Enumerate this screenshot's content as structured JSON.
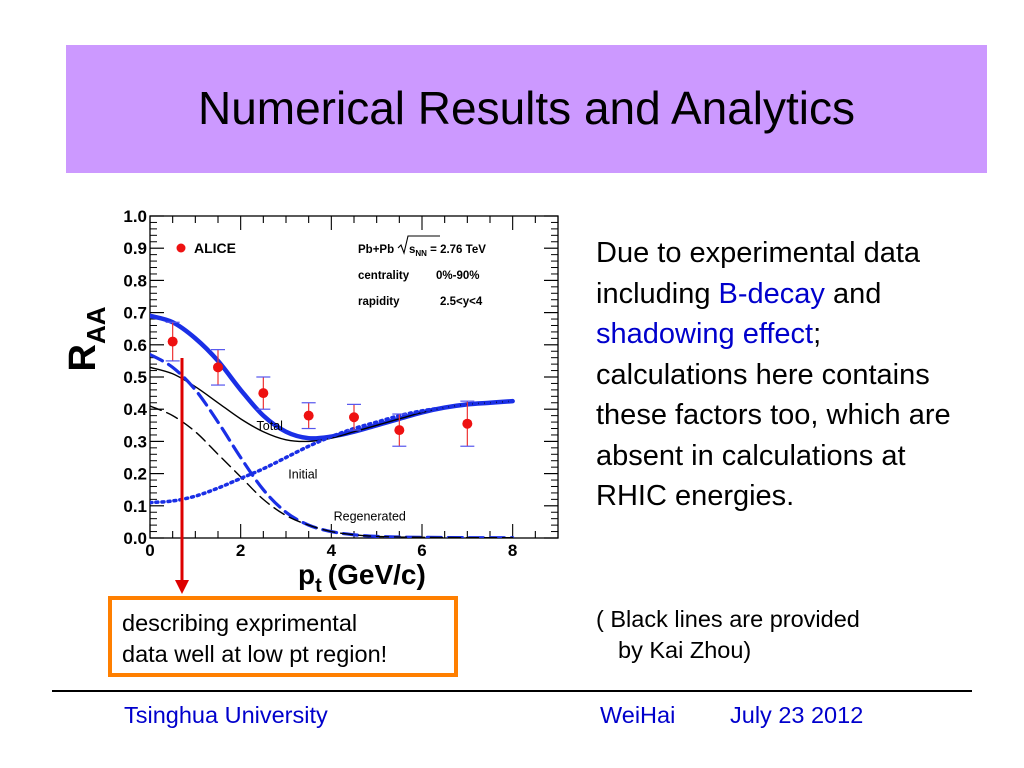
{
  "slide": {
    "title": "Numerical Results and Analytics",
    "colors": {
      "title_bg": "#cc99ff",
      "highlight": "#0000cc",
      "callout_border": "#ff7f00",
      "arrow": "#dd0000"
    }
  },
  "text": {
    "p1": "Due to experimental data including ",
    "h1": "B-decay",
    "p2": " and ",
    "h2": "shadowing effect",
    "p3": "; calculations here contains these factors too, which are absent in calculations at RHIC energies.",
    "note_line1": "( Black lines are provided",
    "note_line2": "by Kai Zhou)"
  },
  "callout": {
    "line1": "describing exprimental",
    "line2": "data well at low pt region!"
  },
  "footer": {
    "university": "Tsinghua University",
    "place": "WeiHai",
    "date": "July 23  2012"
  },
  "chart_data": {
    "type": "line",
    "ylabel_main": "R",
    "ylabel_sub": "AA",
    "xlabel_main": "p",
    "xlabel_sub": "t",
    "xlabel_unit": "(GeV/c)",
    "xlim": [
      0,
      9
    ],
    "ylim": [
      0,
      1
    ],
    "x_ticks": [
      0,
      2,
      4,
      6,
      8
    ],
    "y_ticks": [
      0.0,
      0.1,
      0.2,
      0.3,
      0.4,
      0.5,
      0.6,
      0.7,
      0.8,
      0.9,
      1.0
    ],
    "y_tick_labels": [
      "0.0",
      "0.1",
      "0.2",
      "0.3",
      "0.4",
      "0.5",
      "0.6",
      "0.7",
      "0.8",
      "0.9",
      "1.0"
    ],
    "legend": {
      "label": "ALICE",
      "position": "top-left"
    },
    "info": {
      "line1_pre": "Pb+Pb ",
      "line1_s": "s",
      "line1_sub": "NN",
      "line1_post": " = 2.76 TeV",
      "line2_label": "centrality",
      "line2_value": "0%-90%",
      "line3_label": "rapidity",
      "line3_value": "2.5<y<4"
    },
    "annotations": [
      {
        "text": "Total",
        "x": 2.35,
        "y": 0.335
      },
      {
        "text": "Initial",
        "x": 3.05,
        "y": 0.185
      },
      {
        "text": "Regenerated",
        "x": 4.05,
        "y": 0.055
      }
    ],
    "data_points": {
      "name": "ALICE",
      "x": [
        0.5,
        1.5,
        2.5,
        3.5,
        4.5,
        5.5,
        7.0
      ],
      "y": [
        0.61,
        0.53,
        0.45,
        0.38,
        0.375,
        0.335,
        0.355
      ],
      "err": [
        0.06,
        0.055,
        0.05,
        0.04,
        0.04,
        0.05,
        0.07
      ]
    },
    "series": [
      {
        "style": "blue-solid-thick",
        "x": [
          0,
          0.5,
          1,
          1.5,
          2,
          2.5,
          3,
          3.5,
          4,
          4.5,
          5,
          5.5,
          6,
          6.5,
          7,
          7.5,
          8
        ],
        "values": [
          0.69,
          0.67,
          0.62,
          0.55,
          0.46,
          0.38,
          0.33,
          0.31,
          0.315,
          0.33,
          0.35,
          0.37,
          0.39,
          0.405,
          0.415,
          0.42,
          0.425
        ]
      },
      {
        "style": "black-solid",
        "x": [
          0,
          0.5,
          1,
          1.5,
          2,
          2.5,
          3,
          3.5,
          4,
          4.5,
          5,
          5.5,
          6,
          6.5,
          7,
          7.5,
          8
        ],
        "values": [
          0.53,
          0.51,
          0.47,
          0.42,
          0.37,
          0.33,
          0.305,
          0.3,
          0.31,
          0.33,
          0.35,
          0.37,
          0.39,
          0.405,
          0.415,
          0.42,
          0.425
        ]
      },
      {
        "style": "blue-dashed",
        "x": [
          0,
          0.5,
          1,
          1.5,
          2,
          2.5,
          3,
          3.5,
          4,
          4.5,
          5,
          5.5,
          6,
          7,
          8
        ],
        "values": [
          0.57,
          0.53,
          0.46,
          0.36,
          0.25,
          0.15,
          0.08,
          0.04,
          0.02,
          0.01,
          0.005,
          0.003,
          0.002,
          0.001,
          0.001
        ]
      },
      {
        "style": "black-dashed",
        "x": [
          0,
          0.5,
          1,
          1.5,
          2,
          2.5,
          3,
          3.5,
          4,
          4.5,
          5,
          5.5,
          6,
          7,
          8
        ],
        "values": [
          0.41,
          0.38,
          0.33,
          0.26,
          0.19,
          0.12,
          0.07,
          0.04,
          0.02,
          0.01,
          0.005,
          0.003,
          0.002,
          0.001,
          0.001
        ]
      },
      {
        "style": "blue-dotted",
        "x": [
          0,
          0.5,
          1,
          1.5,
          2,
          2.5,
          3,
          3.5,
          4,
          4.5,
          5,
          5.5,
          6,
          6.5,
          7,
          7.5,
          8
        ],
        "values": [
          0.11,
          0.115,
          0.13,
          0.155,
          0.185,
          0.215,
          0.25,
          0.285,
          0.315,
          0.34,
          0.36,
          0.38,
          0.395,
          0.405,
          0.415,
          0.42,
          0.425
        ]
      }
    ]
  }
}
